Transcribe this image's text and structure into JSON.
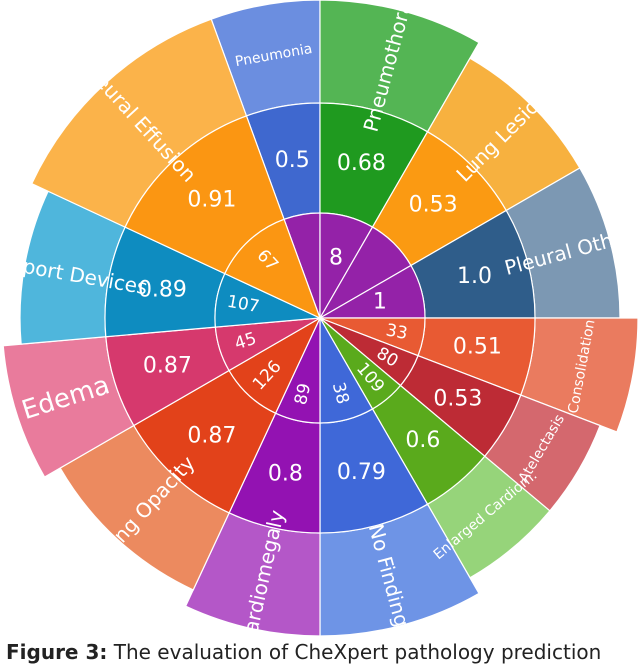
{
  "chart_data": {
    "type": "sunburst",
    "sectors": [
      {
        "name": "Pneumonia",
        "count": "8",
        "score": "0.5",
        "color": "#6b8ee0",
        "score_color": "#3f68cf",
        "count_color": "#9422a8"
      },
      {
        "name": "Pneumothorax",
        "count": "8",
        "score": "0.68",
        "color": "#54b554",
        "score_color": "#1f9a1f",
        "count_color": "#9422a8"
      },
      {
        "name": "Lung Lesion",
        "count": "1",
        "score": "0.53",
        "color": "#f7b13f",
        "score_color": "#fb9a12",
        "count_color": "#9422a8"
      },
      {
        "name": "Pleural Other",
        "count": "1",
        "score": "1.0",
        "color": "#7c98b3",
        "score_color": "#2f5d8a",
        "count_color": "#9422a8"
      },
      {
        "name": "Consolidation",
        "count": "33",
        "score": "0.51",
        "color": "#ea7b5f",
        "score_color": "#e85a33",
        "count_color": "#e85a33"
      },
      {
        "name": "Atelectasis",
        "count": "80",
        "score": "0.53",
        "color": "#d4686e",
        "score_color": "#bd2b35",
        "count_color": "#bd2b35"
      },
      {
        "name": "Enlarged Cardiom.",
        "count": "109",
        "score": "0.6",
        "color": "#96d47a",
        "score_color": "#5aaa1c",
        "count_color": "#5aaa1c"
      },
      {
        "name": "No Finding",
        "count": "38",
        "score": "0.79",
        "color": "#6e94e6",
        "score_color": "#3f68d8",
        "count_color": "#3f68d8"
      },
      {
        "name": "Cardiomegaly",
        "count": "89",
        "score": "0.8",
        "color": "#b457c8",
        "score_color": "#9312b2",
        "count_color": "#9312b2"
      },
      {
        "name": "Lung Opacity",
        "count": "126",
        "score": "0.87",
        "color": "#ec8a5f",
        "score_color": "#e2421a",
        "count_color": "#e2421a"
      },
      {
        "name": "Edema",
        "count": "45",
        "score": "0.87",
        "color": "#e97b9c",
        "score_color": "#d6396d",
        "count_color": "#d6396d"
      },
      {
        "name": "Support Devices",
        "count": "107",
        "score": "0.89",
        "color": "#4fb6dc",
        "score_color": "#0e8cc0",
        "count_color": "#0e8cc0"
      },
      {
        "name": "Pleural Effusion",
        "count": "67",
        "score": "0.91",
        "color": "#fbb34a",
        "score_color": "#fb9612",
        "count_color": "#fb9612"
      }
    ]
  },
  "caption": {
    "label": "Figure 3:",
    "text": "The evaluation of CheXpert pathology prediction"
  }
}
